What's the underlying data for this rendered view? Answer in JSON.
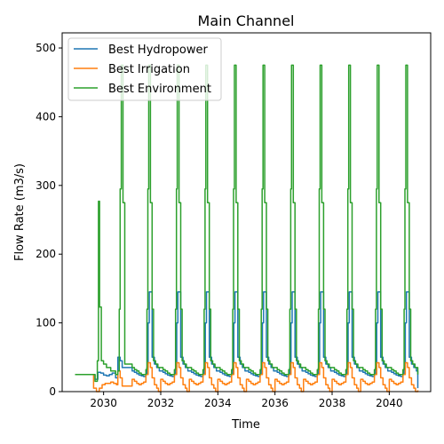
{
  "chart_data": {
    "type": "line",
    "title": "Main Channel",
    "xlabel": "Time",
    "ylabel": "Flow Rate (m3/s)",
    "xlim": [
      2028.55,
      2041.45
    ],
    "ylim": [
      0,
      522
    ],
    "xticks": [
      2030,
      2032,
      2034,
      2036,
      2038,
      2040
    ],
    "yticks": [
      0,
      100,
      200,
      300,
      400,
      500
    ],
    "legend_position": "top-left",
    "grid": false,
    "start": 2029.0,
    "end": 2041.0,
    "series": [
      {
        "name": "Best Hydropower",
        "color": "#1f77b4",
        "initial_level": 25,
        "first_year": {
          "start": 2029.55,
          "points": [
            [
              2029.55,
              25
            ],
            [
              2029.7,
              18
            ],
            [
              2029.8,
              28
            ],
            [
              2029.9,
              27
            ],
            [
              2030.0,
              24
            ],
            [
              2030.1,
              23
            ],
            [
              2030.2,
              25
            ],
            [
              2030.3,
              27
            ],
            [
              2030.42,
              20
            ],
            [
              2030.5,
              50
            ],
            [
              2030.58,
              45
            ],
            [
              2030.65,
              35
            ]
          ]
        },
        "cycle": [
          [
            0.0,
            30
          ],
          [
            0.08,
            28
          ],
          [
            0.16,
            26
          ],
          [
            0.24,
            24
          ],
          [
            0.32,
            23
          ],
          [
            0.4,
            22
          ],
          [
            0.48,
            25
          ],
          [
            0.52,
            35
          ],
          [
            0.56,
            100
          ],
          [
            0.6,
            145
          ],
          [
            0.66,
            145
          ],
          [
            0.7,
            50
          ],
          [
            0.78,
            40
          ],
          [
            0.86,
            35
          ],
          [
            0.95,
            30
          ]
        ],
        "end_value": 5
      },
      {
        "name": "Best Irrigation",
        "color": "#ff7f0e",
        "initial_level": 25,
        "first_year": {
          "start": 2029.55,
          "points": [
            [
              2029.55,
              25
            ],
            [
              2029.65,
              5
            ],
            [
              2029.75,
              0
            ],
            [
              2029.85,
              5
            ],
            [
              2029.95,
              10
            ],
            [
              2030.05,
              12
            ],
            [
              2030.15,
              12
            ],
            [
              2030.25,
              14
            ],
            [
              2030.35,
              12
            ],
            [
              2030.45,
              10
            ],
            [
              2030.5,
              30
            ],
            [
              2030.58,
              20
            ],
            [
              2030.65,
              8
            ]
          ]
        },
        "cycle": [
          [
            0.0,
            18
          ],
          [
            0.08,
            15
          ],
          [
            0.16,
            12
          ],
          [
            0.24,
            10
          ],
          [
            0.32,
            12
          ],
          [
            0.4,
            14
          ],
          [
            0.48,
            25
          ],
          [
            0.56,
            42
          ],
          [
            0.64,
            35
          ],
          [
            0.7,
            20
          ],
          [
            0.78,
            10
          ],
          [
            0.86,
            5
          ],
          [
            0.92,
            0
          ]
        ],
        "end_value": 2
      },
      {
        "name": "Best Environment",
        "color": "#2ca02c",
        "initial_level": 25,
        "first_year": {
          "start": 2029.55,
          "points": [
            [
              2029.55,
              25
            ],
            [
              2029.7,
              15
            ],
            [
              2029.78,
              45
            ],
            [
              2029.82,
              277
            ],
            [
              2029.86,
              123
            ],
            [
              2029.92,
              45
            ],
            [
              2030.0,
              40
            ],
            [
              2030.1,
              35
            ],
            [
              2030.25,
              30
            ],
            [
              2030.42,
              25
            ],
            [
              2030.5,
              30
            ],
            [
              2030.55,
              120
            ],
            [
              2030.58,
              295
            ],
            [
              2030.62,
              475
            ],
            [
              2030.68,
              275
            ],
            [
              2030.74,
              40
            ]
          ]
        },
        "cycle": [
          [
            0.0,
            35
          ],
          [
            0.08,
            32
          ],
          [
            0.16,
            30
          ],
          [
            0.24,
            27
          ],
          [
            0.32,
            25
          ],
          [
            0.4,
            25
          ],
          [
            0.48,
            32
          ],
          [
            0.52,
            120
          ],
          [
            0.55,
            295
          ],
          [
            0.58,
            475
          ],
          [
            0.64,
            275
          ],
          [
            0.7,
            120
          ],
          [
            0.75,
            45
          ],
          [
            0.82,
            40
          ],
          [
            0.9,
            35
          ]
        ],
        "end_value": 25
      }
    ]
  }
}
